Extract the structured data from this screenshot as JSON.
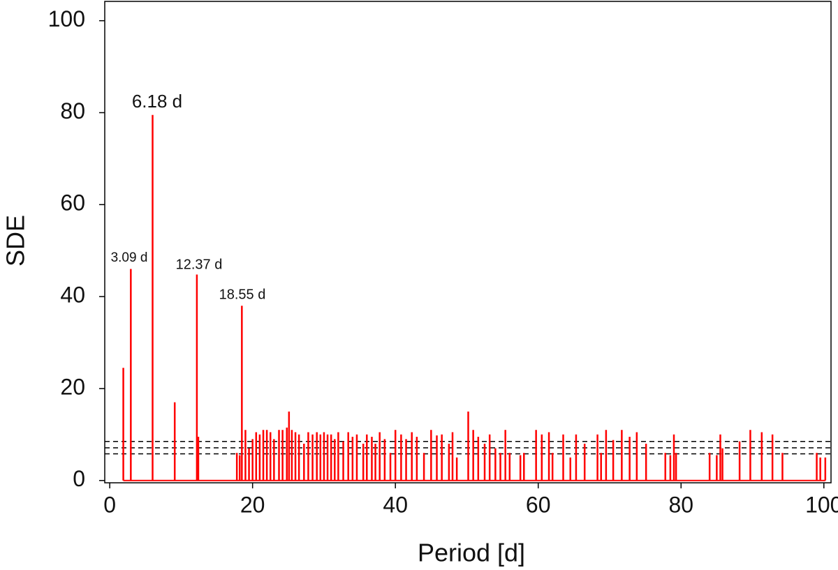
{
  "chart_data": {
    "type": "spike",
    "x_label": "Period [d]",
    "y_label": "SDE",
    "color": "#ff0000",
    "xlim": [
      -0.7,
      101
    ],
    "ylim": [
      -0.5,
      104.2
    ],
    "xticks": [
      0,
      20,
      40,
      60,
      80,
      100
    ],
    "yticks": [
      0,
      20,
      40,
      60,
      80,
      100
    ],
    "thresholds": [
      8.5,
      7.1,
      5.8
    ],
    "annotations": [
      "6.18 d",
      "3.09 d",
      "12.37 d",
      "18.55 d"
    ],
    "x": [
      1.9,
      2.95,
      6.0,
      9.1,
      12.2,
      12.4,
      18.5,
      17.8,
      18.2,
      19,
      19.5,
      20,
      20.5,
      21,
      21.5,
      22,
      22.5,
      23,
      23.7,
      24.2,
      24.8,
      25.1,
      25.5,
      26,
      26.5,
      27.2,
      27.8,
      28.4,
      29,
      29.5,
      30,
      30.5,
      31,
      31.5,
      32,
      32.7,
      33.4,
      34,
      34.6,
      35.5,
      36,
      36.7,
      37.2,
      37.8,
      38.5,
      39.3,
      40,
      40.8,
      41.5,
      42.3,
      43,
      44,
      45,
      45.8,
      46.5,
      47.5,
      48,
      48.6,
      50.2,
      50.9,
      51.6,
      52.5,
      53.2,
      54,
      54.7,
      55.4,
      56,
      57.5,
      58,
      59.7,
      60.5,
      61.5,
      62,
      63.5,
      64.5,
      65.3,
      66.5,
      68.3,
      68.8,
      69.5,
      70.5,
      71.7,
      72.8,
      73.8,
      75.1,
      77.8,
      78.5,
      79,
      79.3,
      84,
      85,
      85.5,
      85.8,
      88.2,
      89.7,
      91.3,
      92.8,
      94.2,
      99,
      99.5,
      100.2
    ],
    "values": [
      24.5,
      46,
      79.5,
      17,
      44.8,
      9.5,
      38,
      6,
      5.5,
      11,
      7,
      9,
      10.5,
      10,
      11,
      11,
      10.5,
      9,
      11,
      11,
      11.5,
      15,
      11,
      10.5,
      10,
      8,
      10.5,
      10,
      10.5,
      10,
      10.5,
      10,
      10,
      9,
      10.5,
      8.5,
      10.5,
      9.5,
      10,
      8,
      10,
      9.5,
      8,
      10.5,
      9,
      6,
      11,
      10,
      9,
      10.5,
      9.5,
      6,
      11,
      9.8,
      10,
      8,
      10.5,
      5,
      15,
      11,
      9.5,
      8,
      10,
      7,
      6,
      11,
      6,
      5.5,
      6,
      11,
      10,
      10.5,
      6,
      10,
      5,
      10,
      8,
      10,
      6,
      11,
      8.8,
      11,
      9.5,
      10.5,
      8,
      6,
      5.5,
      10,
      6,
      6,
      5.5,
      10,
      7,
      8.5,
      11,
      10.5,
      10,
      6,
      6,
      5,
      5
    ]
  }
}
